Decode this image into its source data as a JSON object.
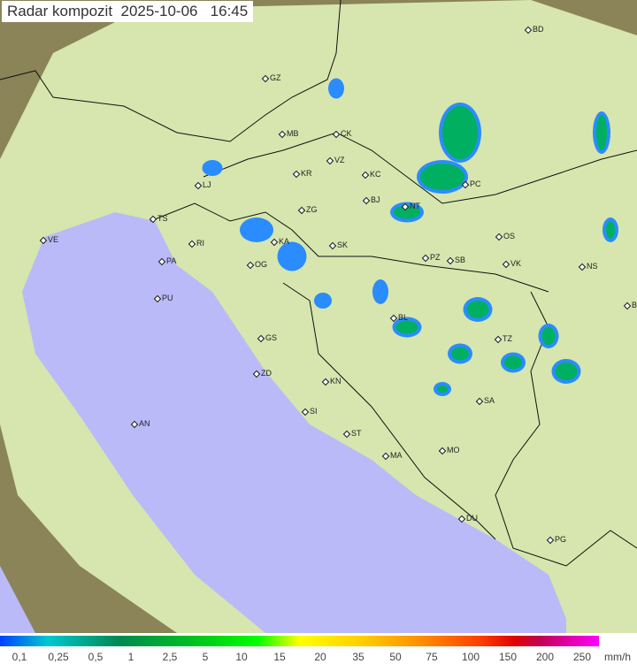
{
  "title": {
    "label": "Radar kompozit",
    "date": "2025-10-06",
    "time": "16:45"
  },
  "colors": {
    "sea": "#babaf8",
    "coverage": "#d8e8b0",
    "outside": "#8a8458",
    "rain_light": "#2a8cff",
    "rain_medium": "#00b060"
  },
  "cities": [
    "GZ",
    "MB",
    "CK",
    "VZ",
    "KR",
    "KC",
    "LJ",
    "ZG",
    "BJ",
    "TS",
    "VE",
    "RI",
    "KA",
    "SK",
    "PA",
    "OG",
    "PZ",
    "SB",
    "OS",
    "VK",
    "NS",
    "BD",
    "PC",
    "NT",
    "PU",
    "BL",
    "TZ",
    "BG",
    "GS",
    "ZD",
    "KN",
    "SA",
    "SI",
    "AN",
    "ST",
    "MO",
    "MA",
    "DU",
    "PG"
  ],
  "legend": {
    "labels": [
      "0,1",
      "0,25",
      "0,5",
      "1",
      "2,5",
      "5",
      "10",
      "15",
      "20",
      "35",
      "50",
      "75",
      "100",
      "150",
      "200",
      "250"
    ],
    "unit": "mm/h"
  }
}
